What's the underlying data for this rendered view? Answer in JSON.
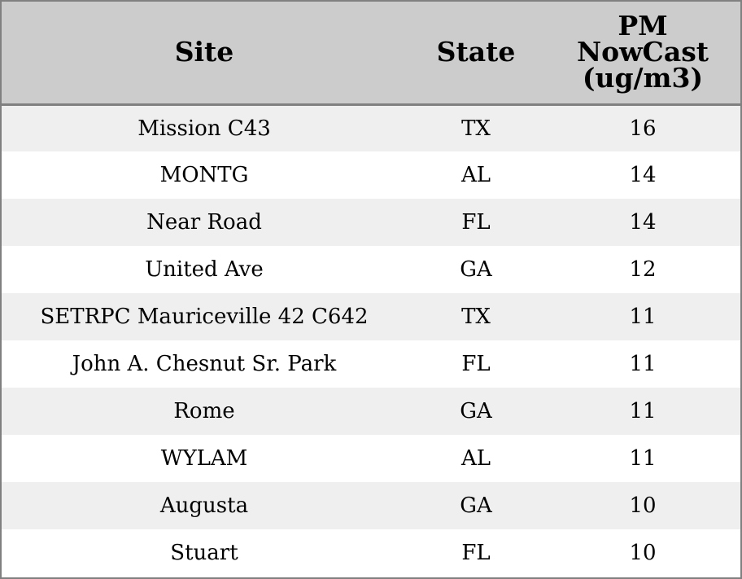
{
  "chart_data": {
    "type": "table",
    "columns": [
      "Site",
      "State",
      "PM NowCast (ug/m3)"
    ],
    "header_lines": {
      "site": "Site",
      "state": "State",
      "pm": [
        "PM",
        "NowCast",
        "(ug/m3)"
      ]
    },
    "rows": [
      {
        "site": "Mission C43",
        "state": "TX",
        "pm": "16"
      },
      {
        "site": "MONTG",
        "state": "AL",
        "pm": "14"
      },
      {
        "site": "Near Road",
        "state": "FL",
        "pm": "14"
      },
      {
        "site": "United Ave",
        "state": "GA",
        "pm": "12"
      },
      {
        "site": "SETRPC Mauriceville 42 C642",
        "state": "TX",
        "pm": "11"
      },
      {
        "site": "John A. Chesnut Sr. Park",
        "state": "FL",
        "pm": "11"
      },
      {
        "site": "Rome",
        "state": "GA",
        "pm": "11"
      },
      {
        "site": "WYLAM",
        "state": "AL",
        "pm": "11"
      },
      {
        "site": "Augusta",
        "state": "GA",
        "pm": "10"
      },
      {
        "site": "Stuart",
        "state": "FL",
        "pm": "10"
      }
    ],
    "colors": {
      "header_bg": "#cccccc",
      "row_alt_bg": "#efefef",
      "row_bg": "#ffffff",
      "border": "#808080"
    }
  }
}
